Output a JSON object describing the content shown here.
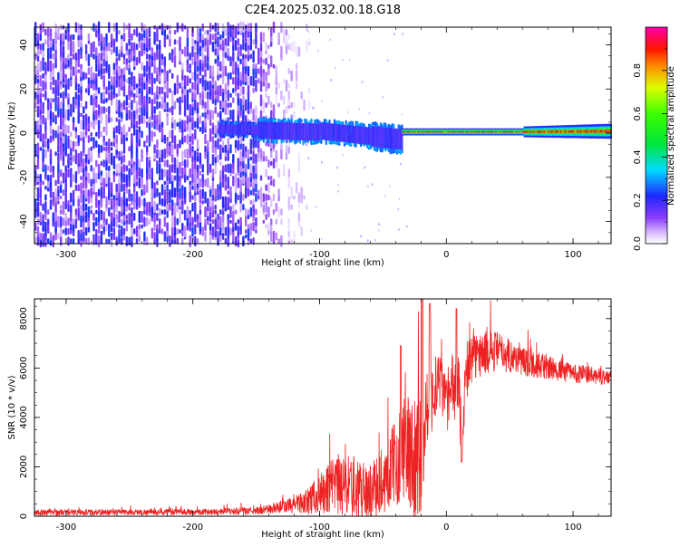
{
  "title": "C2E4.2025.032.00.18.G18",
  "chart_data": [
    {
      "type": "heatmap",
      "xlabel": "Height of straight line (km)",
      "ylabel": "Frequency (Hz)",
      "xlim": [
        -325,
        130
      ],
      "ylim": [
        -50,
        48
      ],
      "xticks": [
        -300,
        -200,
        -100,
        0,
        100
      ],
      "yticks": [
        -40,
        -20,
        0,
        20,
        40
      ],
      "colorbar": {
        "label": "Normalized spectral amplitude",
        "range": [
          0,
          1
        ],
        "ticks": [
          0,
          0.2,
          0.4,
          0.6,
          0.8
        ]
      },
      "regions": [
        {
          "x_range": [
            -325,
            -140
          ],
          "freq_range": [
            -50,
            48
          ],
          "description_level": "scattered noise, amplitude ~0.05-0.2"
        },
        {
          "x_range": [
            -140,
            -110
          ],
          "freq_range": [
            -50,
            48
          ],
          "description_level": "sparse faint noise, amplitude ~0.02-0.05"
        },
        {
          "x_range": [
            -180,
            -35
          ],
          "freq_center": 0,
          "freq_halfwidth": 5,
          "description_level": "signal band, amplitude ~0.2-0.5"
        },
        {
          "x_range": [
            -35,
            130
          ],
          "freq_center": 0.5,
          "freq_halfwidth": 2,
          "description_level": "narrow strong line, amplitude ~0.8-1.0"
        }
      ]
    },
    {
      "type": "line",
      "xlabel": "Height of straight line (km)",
      "ylabel": "SNR (10 * v/v)",
      "xlim": [
        -325,
        130
      ],
      "ylim": [
        0,
        8800
      ],
      "xticks": [
        -300,
        -200,
        -100,
        0,
        100
      ],
      "yticks": [
        0,
        2000,
        4000,
        6000,
        8000
      ],
      "color": "#ee2222",
      "envelope": {
        "x": [
          -325,
          -200,
          -150,
          -130,
          -110,
          -100,
          -90,
          -80,
          -70,
          -60,
          -50,
          -45,
          -40,
          -35,
          -30,
          -25,
          -22,
          -20,
          -18,
          -15,
          -10,
          -5,
          -2,
          0,
          5,
          10,
          12,
          15,
          20,
          30,
          40,
          50,
          60,
          80,
          100,
          130
        ],
        "mean": [
          150,
          170,
          220,
          350,
          600,
          900,
          1100,
          1200,
          1100,
          1000,
          1400,
          1800,
          2200,
          2800,
          2600,
          2400,
          2500,
          2700,
          3500,
          4500,
          5000,
          5300,
          5000,
          4500,
          4800,
          5500,
          2200,
          5600,
          6400,
          6600,
          6700,
          6500,
          6300,
          6000,
          5800,
          5600
        ],
        "amplitude": [
          120,
          120,
          150,
          250,
          500,
          800,
          1200,
          1300,
          1200,
          1100,
          1300,
          1500,
          1800,
          2200,
          2400,
          2600,
          2800,
          3000,
          2500,
          1500,
          1400,
          1300,
          1200,
          1100,
          1100,
          1200,
          500,
          1200,
          1000,
          900,
          800,
          700,
          600,
          500,
          400,
          300
        ]
      },
      "peaks": [
        {
          "x": -36,
          "y": 6900
        },
        {
          "x": -19,
          "y": 8800
        },
        {
          "x": -13,
          "y": 8600
        },
        {
          "x": 8,
          "y": 8400
        },
        {
          "x": 12,
          "y": 2200
        }
      ]
    }
  ]
}
